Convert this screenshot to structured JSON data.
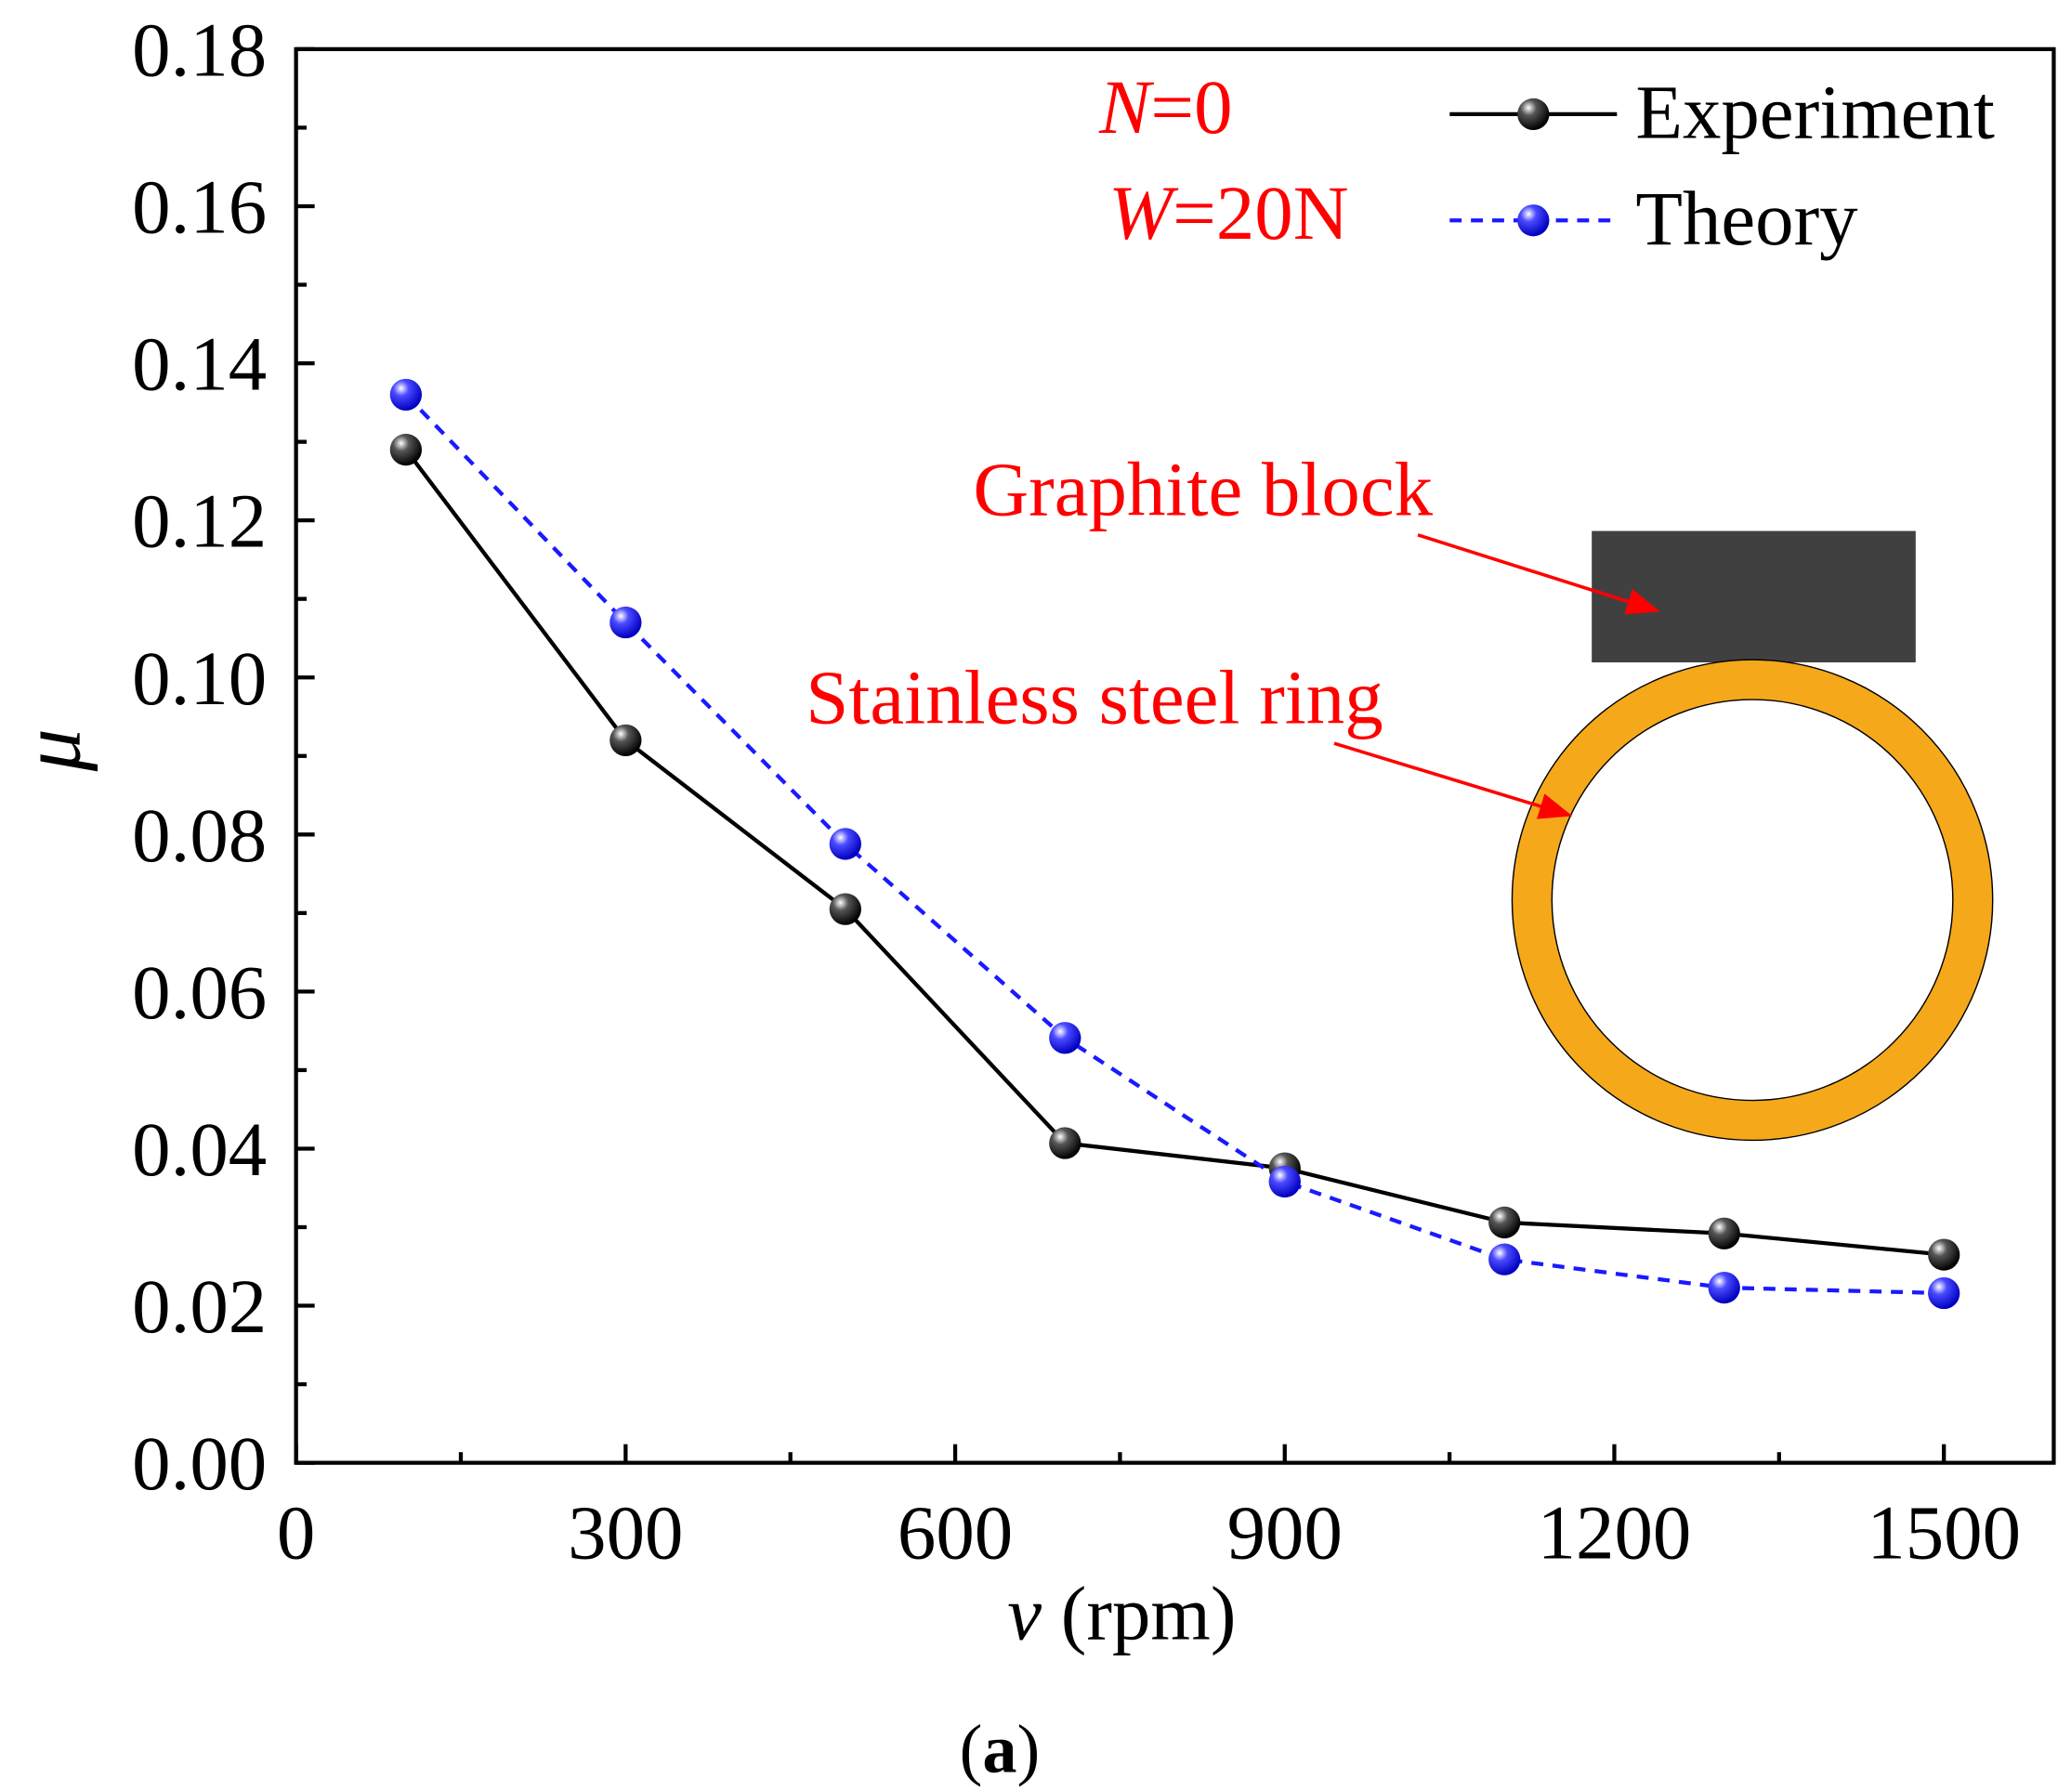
{
  "chart_data": {
    "type": "line",
    "title": "",
    "xlabel_var": "v",
    "xlabel_unit": " (rpm)",
    "ylabel": "μ",
    "xlim": [
      0,
      1600
    ],
    "ylim": [
      0,
      0.18
    ],
    "xticks": [
      0,
      300,
      600,
      900,
      1200,
      1500
    ],
    "xtick_labels": [
      "0",
      "300",
      "600",
      "900",
      "1200",
      "1500"
    ],
    "yticks": [
      0,
      0.02,
      0.04,
      0.06,
      0.08,
      0.1,
      0.12,
      0.14,
      0.16,
      0.18
    ],
    "ytick_labels": [
      "0.00",
      "0.02",
      "0.04",
      "0.06",
      "0.08",
      "0.10",
      "0.12",
      "0.14",
      "0.16",
      "0.18"
    ],
    "x": [
      100,
      300,
      500,
      700,
      900,
      1100,
      1300,
      1500
    ],
    "series": [
      {
        "name": "Experiment",
        "color": "#000000",
        "dash": "solid",
        "values": [
          0.129,
          0.092,
          0.0705,
          0.0407,
          0.0375,
          0.0306,
          0.0292,
          0.0265
        ]
      },
      {
        "name": "Theory",
        "color": "#1a1aff",
        "dash": "dashed",
        "values": [
          0.136,
          0.107,
          0.0788,
          0.0541,
          0.0358,
          0.0259,
          0.0223,
          0.0216
        ]
      }
    ],
    "legend_position": "top-right",
    "annotations": {
      "n_var": "N",
      "n_val": "=0",
      "w_var": "W",
      "w_val": "=20N",
      "graphite": "Graphite block",
      "ring": "Stainless steel ring"
    },
    "colors": {
      "annotation": "#ff0000",
      "graphite": "#404040",
      "ring": "#f5a91a"
    },
    "caption_open": "(",
    "caption_letter": "a",
    "caption_close": ")"
  }
}
